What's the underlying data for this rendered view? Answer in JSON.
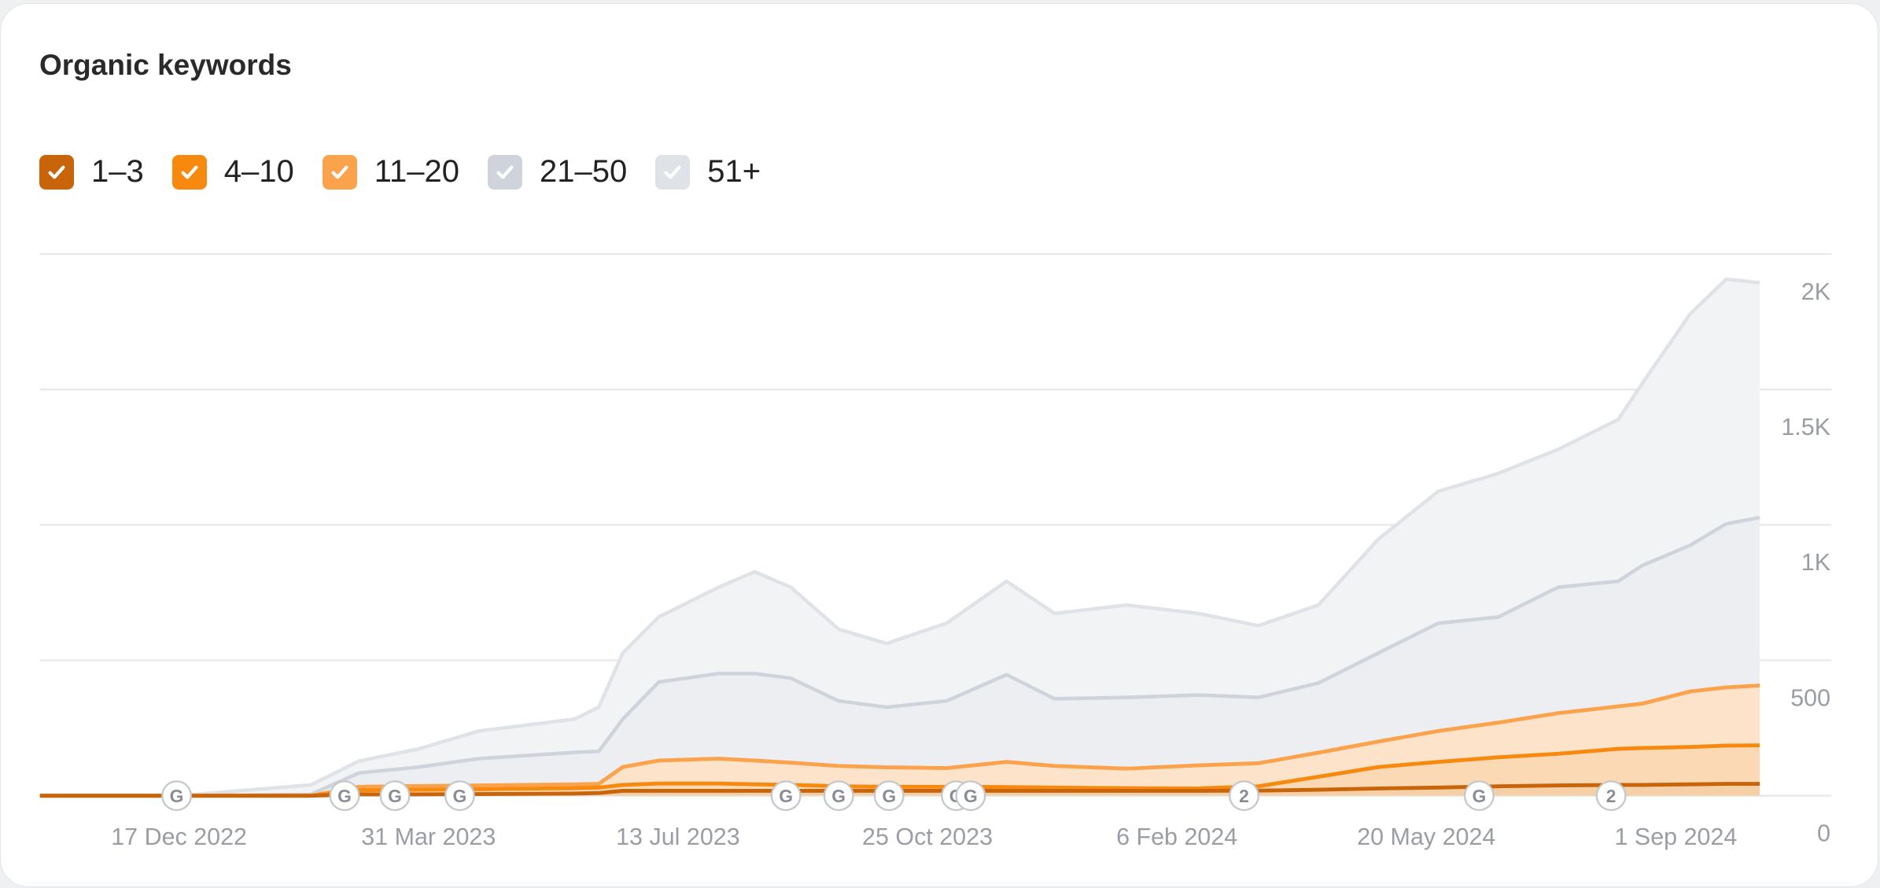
{
  "title": "Organic keywords",
  "legend": [
    {
      "label": "1–3",
      "color": "#c8650a",
      "checked": true
    },
    {
      "label": "4–10",
      "color": "#f7890f",
      "checked": true
    },
    {
      "label": "11–20",
      "color": "#fba34c",
      "checked": true
    },
    {
      "label": "21–50",
      "color": "#cfd4dc",
      "checked": true
    },
    {
      "label": "51+",
      "color": "#dfe2e6",
      "checked": true
    }
  ],
  "chart_data": {
    "type": "area",
    "stacked": true,
    "xlim": [
      "2022-10-20",
      "2024-10-06"
    ],
    "ylim": [
      0,
      2000
    ],
    "grid": true,
    "y_ticks": [
      {
        "value": 0,
        "label": "0"
      },
      {
        "value": 500,
        "label": "500"
      },
      {
        "value": 1000,
        "label": "1K"
      },
      {
        "value": 1500,
        "label": "1.5K"
      },
      {
        "value": 2000,
        "label": "2K"
      }
    ],
    "x_ticks": [
      {
        "date": "2022-12-17",
        "label": "17 Dec 2022"
      },
      {
        "date": "2023-03-31",
        "label": "31 Mar 2023"
      },
      {
        "date": "2023-07-13",
        "label": "13 Jul 2023"
      },
      {
        "date": "2023-10-25",
        "label": "25 Oct 2023"
      },
      {
        "date": "2024-02-06",
        "label": "6 Feb 2024"
      },
      {
        "date": "2024-05-20",
        "label": "20 May 2024"
      },
      {
        "date": "2024-09-01",
        "label": "1 Sep 2024"
      }
    ],
    "x": [
      "2022-10-20",
      "2022-12-17",
      "2023-02-10",
      "2023-03-02",
      "2023-03-27",
      "2023-04-21",
      "2023-05-31",
      "2023-06-10",
      "2023-06-20",
      "2023-07-05",
      "2023-07-30",
      "2023-08-14",
      "2023-08-29",
      "2023-09-18",
      "2023-10-08",
      "2023-11-02",
      "2023-11-27",
      "2023-12-17",
      "2024-01-16",
      "2024-02-15",
      "2024-03-11",
      "2024-04-05",
      "2024-04-30",
      "2024-05-25",
      "2024-06-19",
      "2024-07-14",
      "2024-08-08",
      "2024-08-18",
      "2024-09-07",
      "2024-09-22",
      "2024-10-06"
    ],
    "series": [
      {
        "name": "1–3",
        "values": [
          0,
          0,
          0,
          5,
          5,
          6,
          8,
          10,
          18,
          18,
          18,
          18,
          18,
          18,
          18,
          18,
          18,
          18,
          18,
          18,
          19,
          22,
          27,
          30,
          35,
          38,
          40,
          40,
          42,
          44,
          44
        ]
      },
      {
        "name": "4–10",
        "values": [
          0,
          0,
          0,
          15,
          17,
          18,
          20,
          20,
          22,
          27,
          27,
          24,
          22,
          17,
          15,
          15,
          14,
          12,
          10,
          9,
          16,
          48,
          79,
          95,
          107,
          117,
          133,
          136,
          138,
          141,
          142
        ]
      },
      {
        "name": "11–20",
        "values": [
          0,
          0,
          0,
          13,
          14,
          14,
          14,
          14,
          66,
          85,
          92,
          88,
          82,
          75,
          72,
          69,
          93,
          80,
          72,
          85,
          85,
          89,
          94,
          114,
          128,
          150,
          157,
          164,
          205,
          215,
          221
        ]
      },
      {
        "name": "21–50",
        "values": [
          0,
          0,
          5,
          51,
          70,
          99,
          118,
          120,
          177,
          290,
          314,
          321,
          312,
          240,
          222,
          248,
          322,
          248,
          263,
          260,
          243,
          257,
          327,
          398,
          390,
          465,
          462,
          510,
          540,
          604,
          620
        ]
      },
      {
        "name": "51+",
        "values": [
          0,
          0,
          35,
          44,
          67,
          102,
          123,
          163,
          244,
          240,
          319,
          376,
          336,
          265,
          235,
          287,
          345,
          315,
          341,
          301,
          265,
          288,
          420,
          487,
          530,
          509,
          597,
          672,
          854,
          903,
          867
        ]
      }
    ],
    "annotations": [
      {
        "date": "2022-12-16",
        "label": "G"
      },
      {
        "date": "2023-02-24",
        "label": "G"
      },
      {
        "date": "2023-03-17",
        "label": "G"
      },
      {
        "date": "2023-04-13",
        "label": "G"
      },
      {
        "date": "2023-08-27",
        "label": "G"
      },
      {
        "date": "2023-09-18",
        "label": "G"
      },
      {
        "date": "2023-10-09",
        "label": "G"
      },
      {
        "date": "2023-11-06",
        "label": "G"
      },
      {
        "date": "2023-11-12",
        "label": "G"
      },
      {
        "date": "2024-03-05",
        "label": "2"
      },
      {
        "date": "2024-06-11",
        "label": "G"
      },
      {
        "date": "2024-08-05",
        "label": "2"
      }
    ],
    "fills": [
      "#f5cfa6",
      "#fcd9b5",
      "#fde3c9",
      "#eceef1",
      "#f2f3f5"
    ],
    "lines": [
      "#c8650a",
      "#f7890f",
      "#fba34c",
      "#cfd4dc",
      "#dfe2e6"
    ]
  }
}
